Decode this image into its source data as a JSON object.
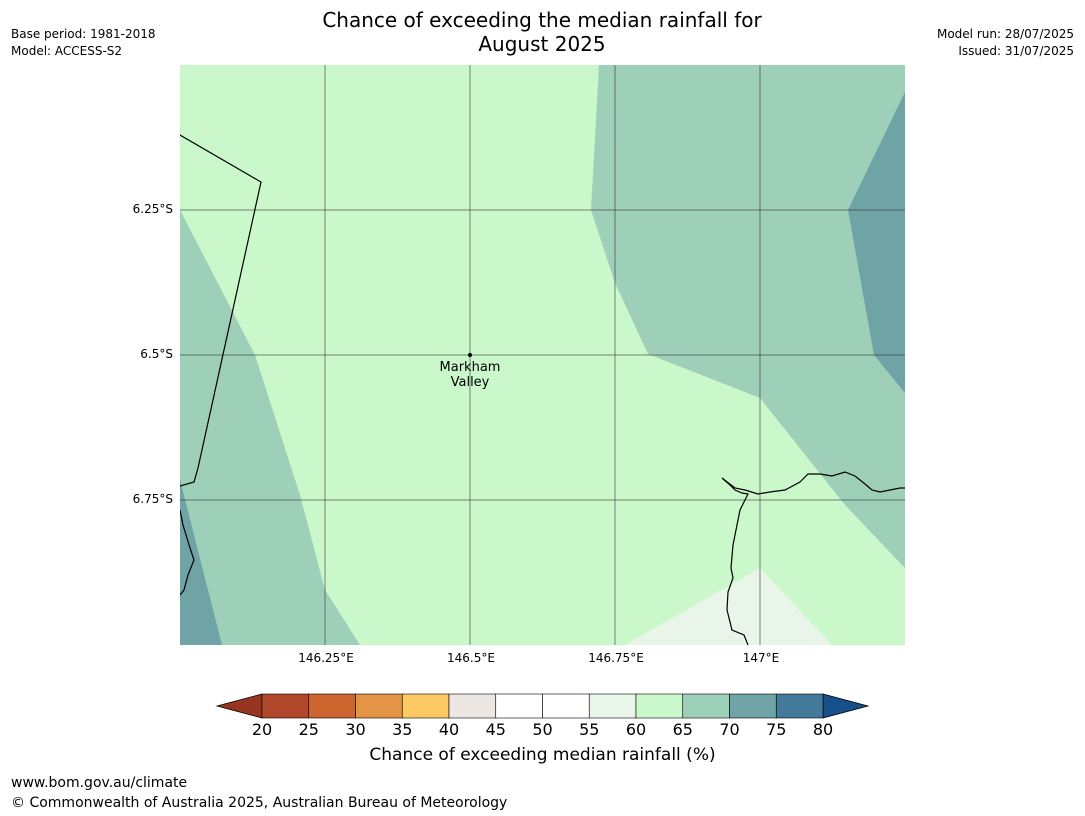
{
  "title_line1": "Chance of exceeding the median rainfall for",
  "title_line2": "August 2025",
  "meta_left": [
    "Base period: 1981-2018",
    "Model: ACCESS-S2"
  ],
  "meta_right": [
    "Model run: 28/07/2025",
    "Issued: 31/07/2025"
  ],
  "lat_ticks": [
    "6.25°S",
    "6.5°S",
    "6.75°S"
  ],
  "lon_ticks": [
    "146.25°E",
    "146.5°E",
    "146.75°E",
    "147°E"
  ],
  "place": {
    "line1": "Markham",
    "line2": "Valley"
  },
  "colorbar": {
    "ticks": [
      "20",
      "25",
      "30",
      "35",
      "40",
      "45",
      "50",
      "55",
      "60",
      "65",
      "70",
      "75",
      "80"
    ],
    "colors": [
      "#b0462a",
      "#cd6530",
      "#e39445",
      "#fdc964",
      "#ece7e3",
      "#ffffff",
      "#ffffff",
      "#e8f5e8",
      "#caf8ca",
      "#9ecfb8",
      "#6fa3a6",
      "#437a99"
    ],
    "under_color": "#983520",
    "over_color": "#174f8d",
    "label": "Chance of exceeding median rainfall (%)"
  },
  "footer": {
    "url": "www.bom.gov.au/climate",
    "copyright": "© Commonwealth of Australia 2025, Australian Bureau of Meteorology"
  }
}
